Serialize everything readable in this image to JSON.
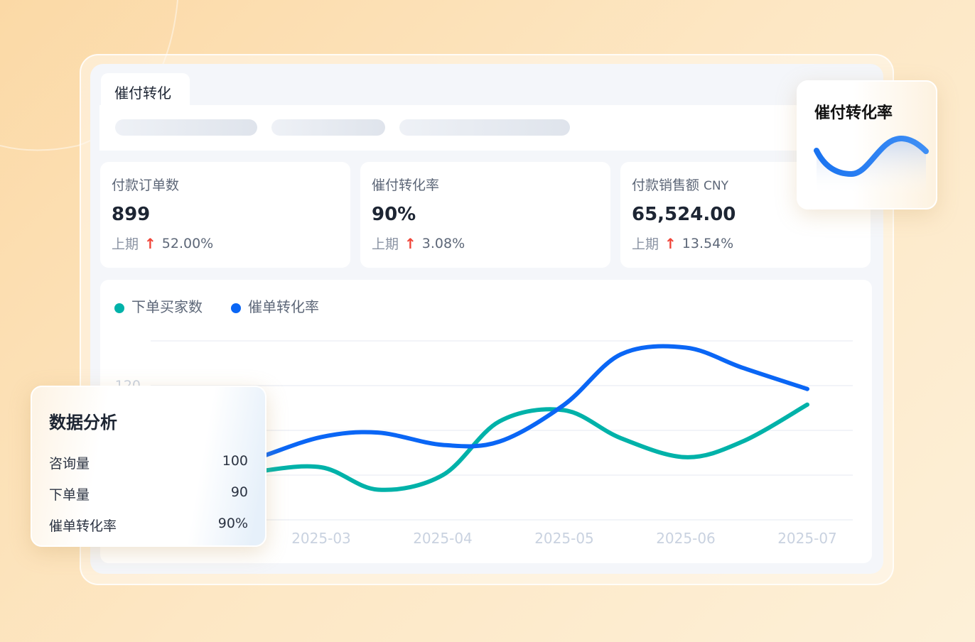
{
  "tab": {
    "label": "催付转化"
  },
  "kpis": [
    {
      "title": "付款订单数",
      "unit": "",
      "value": "899",
      "prev_label": "上期",
      "change": "52.00%",
      "trend": "up"
    },
    {
      "title": "催付转化率",
      "unit": "",
      "value": "90%",
      "prev_label": "上期",
      "change": "3.08%",
      "trend": "up"
    },
    {
      "title": "付款销售额",
      "unit": "CNY",
      "value": "65,524.00",
      "prev_label": "上期",
      "change": "13.54%",
      "trend": "up"
    }
  ],
  "float_card": {
    "title": "催付转化率",
    "icon": "wave-line-chart-icon"
  },
  "analysis": {
    "title": "数据分析",
    "rows": [
      {
        "label": "咨询量",
        "value": "100"
      },
      {
        "label": "下单量",
        "value": "90"
      },
      {
        "label": "催单转化率",
        "value": "90%"
      }
    ]
  },
  "colors": {
    "teal": "#00b2a9",
    "blue": "#0a66f5",
    "up": "#f04438"
  },
  "chart_data": {
    "type": "line",
    "x_ticks": [
      "2025-03",
      "2025-04",
      "2025-05",
      "2025-06",
      "2025-07"
    ],
    "y_ticks": [
      "120"
    ],
    "ylim": [
      0,
      160
    ],
    "grid": true,
    "legend": "top-left",
    "series": [
      {
        "name": "下单买家数",
        "color": "#00b2a9",
        "points": [
          [
            "2025-02-01",
            33
          ],
          [
            "2025-02-15",
            43
          ],
          [
            "2025-03-01",
            47
          ],
          [
            "2025-03-15",
            27
          ],
          [
            "2025-04-01",
            40
          ],
          [
            "2025-04-15",
            88
          ],
          [
            "2025-05-01",
            98
          ],
          [
            "2025-05-15",
            73
          ],
          [
            "2025-06-01",
            56
          ],
          [
            "2025-06-15",
            70
          ],
          [
            "2025-07-01",
            103
          ]
        ]
      },
      {
        "name": "催单转化率",
        "color": "#0a66f5",
        "points": [
          [
            "2025-02-01",
            39
          ],
          [
            "2025-02-15",
            55
          ],
          [
            "2025-03-01",
            74
          ],
          [
            "2025-03-15",
            78
          ],
          [
            "2025-04-01",
            67
          ],
          [
            "2025-04-15",
            70
          ],
          [
            "2025-05-01",
            103
          ],
          [
            "2025-05-15",
            148
          ],
          [
            "2025-06-01",
            154
          ],
          [
            "2025-06-15",
            136
          ],
          [
            "2025-07-01",
            117
          ]
        ]
      }
    ]
  }
}
